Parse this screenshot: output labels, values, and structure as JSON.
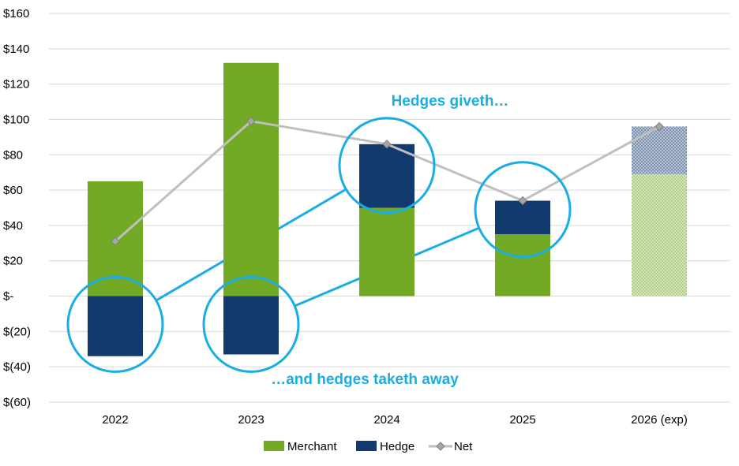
{
  "chart_data": {
    "type": "bar",
    "stacked": true,
    "categories": [
      "2022",
      "2023",
      "2024",
      "2025",
      "2026 (exp)"
    ],
    "series": [
      {
        "name": "Merchant",
        "values": [
          65,
          132,
          50,
          35,
          69
        ],
        "color": "#72A925"
      },
      {
        "name": "Hedge",
        "values": [
          -34,
          -33,
          36,
          19,
          27
        ],
        "color": "#133A6E"
      }
    ],
    "line_series": {
      "name": "Net",
      "values": [
        31,
        99,
        86,
        54,
        96
      ],
      "color": "#BFBFBF",
      "marker_color": "#A6A6A6"
    },
    "ylim": [
      -60,
      160
    ],
    "yticks": [
      -60,
      -40,
      -20,
      0,
      20,
      40,
      60,
      80,
      100,
      120,
      140,
      160
    ],
    "ytick_labels": [
      "$(60)",
      "$(40)",
      "$(20)",
      "$-",
      "$20",
      "$40",
      "$60",
      "$80",
      "$100",
      "$120",
      "$140",
      "$160"
    ],
    "grid": true,
    "legend_position": "bottom",
    "expected_category_pattern": "2026 (exp)",
    "annotations": {
      "top": "Hedges giveth…",
      "bottom": "…and hedges taketh away",
      "color": "#1AADE4"
    },
    "highlight_circles": [
      {
        "category": "2022",
        "value": -16
      },
      {
        "category": "2023",
        "value": -16
      },
      {
        "category": "2024",
        "value": 74
      },
      {
        "category": "2025",
        "value": 49
      }
    ],
    "connectors": [
      {
        "from_category": "2022",
        "to_category": "2024"
      },
      {
        "from_category": "2023",
        "to_category": "2025"
      }
    ]
  }
}
